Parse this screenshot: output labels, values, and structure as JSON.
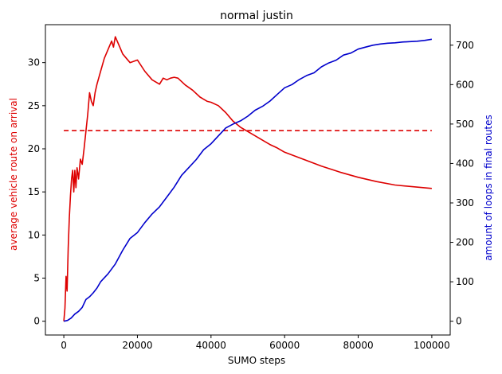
{
  "chart_data": {
    "type": "line",
    "title": "normal justin",
    "xlabel": "SUMO steps",
    "ylabel_left": "average vehicle route on arrival",
    "ylabel_right": "amount of loops in final routes",
    "xlim": [
      -5000,
      105000
    ],
    "ylim_left": [
      -1.6,
      34.4
    ],
    "ylim_right": [
      -35,
      752
    ],
    "x_ticks": [
      0,
      20000,
      40000,
      60000,
      80000,
      100000
    ],
    "x_tick_labels": [
      "0",
      "20000",
      "40000",
      "60000",
      "80000",
      "100000"
    ],
    "y_left_ticks": [
      0,
      5,
      10,
      15,
      20,
      25,
      30
    ],
    "y_left_tick_labels": [
      "0",
      "5",
      "10",
      "15",
      "20",
      "25",
      "30"
    ],
    "y_right_ticks": [
      0,
      100,
      200,
      300,
      400,
      500,
      600,
      700
    ],
    "y_right_tick_labels": [
      "0",
      "100",
      "200",
      "300",
      "400",
      "500",
      "600",
      "700"
    ],
    "grid": false,
    "legend": "none",
    "colors": {
      "left": "#dd0000",
      "right": "#0000cc",
      "axis": "#000000"
    },
    "series": [
      {
        "axis": "left",
        "style": "solid",
        "color": "#dd0000",
        "x": [
          0,
          300,
          600,
          900,
          1200,
          1500,
          1800,
          2100,
          2400,
          2700,
          3000,
          3300,
          3600,
          4000,
          4500,
          5000,
          5500,
          6000,
          6500,
          7000,
          7500,
          8000,
          8500,
          9000,
          10000,
          11000,
          12000,
          13000,
          13500,
          14000,
          15000,
          16000,
          17000,
          18000,
          20000,
          22000,
          24000,
          26000,
          27000,
          28000,
          29000,
          30000,
          31000,
          33000,
          35000,
          37000,
          39000,
          40000,
          42000,
          44000,
          46000,
          48000,
          50000,
          52000,
          54000,
          56000,
          58000,
          60000,
          65000,
          70000,
          75000,
          80000,
          85000,
          90000,
          95000,
          100000
        ],
        "y": [
          0,
          1.5,
          5.2,
          3.5,
          8.5,
          12,
          14.5,
          16.5,
          17.5,
          15,
          17.5,
          15.5,
          17.8,
          16.5,
          18.8,
          18.2,
          20,
          22,
          24,
          26.5,
          25.5,
          25,
          26.5,
          27.5,
          29,
          30.5,
          31.5,
          32.5,
          31.8,
          33,
          32,
          31,
          30.5,
          30,
          30.3,
          29,
          28,
          27.5,
          28.2,
          28,
          28.2,
          28.3,
          28.2,
          27.4,
          26.8,
          26,
          25.5,
          25.4,
          25,
          24.2,
          23.2,
          22.5,
          22,
          21.5,
          21,
          20.5,
          20.1,
          19.6,
          18.8,
          18,
          17.3,
          16.7,
          16.2,
          15.8,
          15.6,
          15.4
        ]
      },
      {
        "axis": "left",
        "style": "dashed",
        "color": "#dd0000",
        "x": [
          0,
          100000
        ],
        "y": [
          22.1,
          22.1
        ]
      },
      {
        "axis": "right",
        "style": "solid",
        "color": "#0000cc",
        "x": [
          0,
          1000,
          2000,
          3000,
          4000,
          5000,
          6000,
          7000,
          8000,
          9000,
          10000,
          12000,
          14000,
          16000,
          18000,
          20000,
          22000,
          24000,
          26000,
          28000,
          30000,
          32000,
          34000,
          36000,
          38000,
          40000,
          42000,
          44000,
          46000,
          48000,
          50000,
          52000,
          54000,
          56000,
          58000,
          60000,
          62000,
          64000,
          66000,
          68000,
          70000,
          72000,
          74000,
          76000,
          78000,
          80000,
          82000,
          84000,
          86000,
          88000,
          90000,
          92000,
          94000,
          96000,
          98000,
          100000
        ],
        "y": [
          0,
          2,
          8,
          18,
          25,
          35,
          55,
          62,
          72,
          84,
          100,
          120,
          145,
          180,
          210,
          225,
          250,
          272,
          290,
          315,
          340,
          370,
          390,
          410,
          435,
          450,
          470,
          490,
          500,
          508,
          520,
          535,
          545,
          558,
          575,
          592,
          600,
          613,
          623,
          630,
          645,
          655,
          662,
          675,
          680,
          690,
          695,
          700,
          703,
          705,
          706,
          708,
          709,
          710,
          712,
          715
        ]
      }
    ]
  }
}
